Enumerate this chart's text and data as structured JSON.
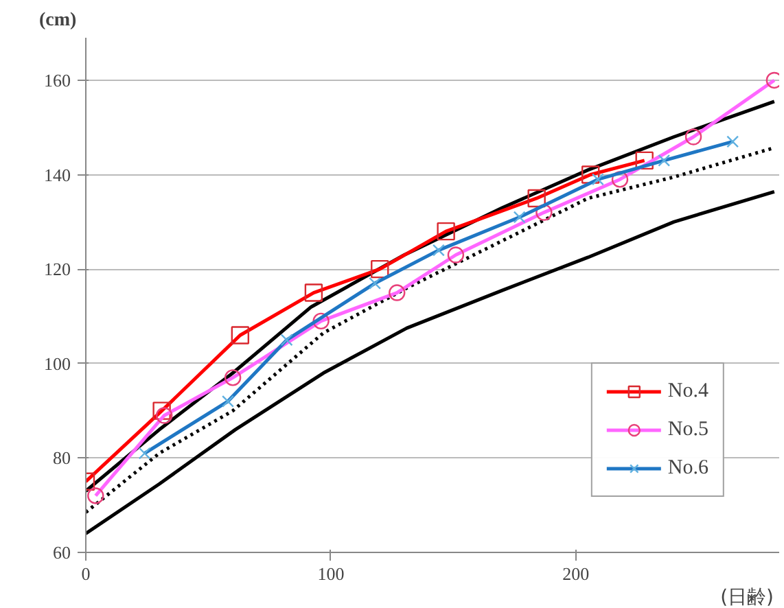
{
  "chart_data": {
    "type": "line",
    "ylabel": "(cm)",
    "xlabel": "(日齢)",
    "xlim": [
      0,
      283
    ],
    "ylim": [
      60,
      169
    ],
    "xticks": [
      0,
      100,
      200
    ],
    "yticks": [
      60,
      80,
      100,
      120,
      140,
      160
    ],
    "grid": "y",
    "legend": "right",
    "line_style": "solid",
    "series": [
      {
        "color": "#000000",
        "marker": "none",
        "x": [
          0,
          30,
          60,
          92,
          130,
          170,
          205,
          240,
          281
        ],
        "values": [
          73,
          86,
          98,
          112,
          123,
          133,
          141,
          148,
          155.5
        ]
      },
      {
        "color": "#000000",
        "marker": "none",
        "line_style": "dotted",
        "x": [
          0,
          30,
          60,
          97,
          131,
          170,
          205,
          240,
          281
        ],
        "values": [
          68.5,
          81,
          90,
          106.5,
          116,
          126,
          135,
          139.5,
          145.7
        ]
      },
      {
        "color": "#000000",
        "marker": "none",
        "x": [
          0,
          30,
          61,
          97,
          131,
          170,
          205,
          240,
          281
        ],
        "values": [
          64,
          74.5,
          86,
          98,
          107.5,
          115.5,
          122.5,
          130,
          136.4
        ]
      },
      {
        "name": "No.4",
        "color": "#ff0000",
        "marker": "square",
        "x": [
          0,
          31,
          63,
          93,
          120,
          147,
          184,
          206,
          228
        ],
        "values": [
          75,
          90,
          106,
          115,
          120,
          128,
          135,
          140,
          143
        ]
      },
      {
        "name": "No.5",
        "color": "#ff66ff",
        "marker": "circle",
        "x": [
          4,
          32,
          60,
          96,
          127,
          151,
          187,
          218,
          248,
          281
        ],
        "values": [
          72,
          89,
          97,
          109,
          115,
          123,
          132,
          139,
          148,
          160
        ]
      },
      {
        "name": "No.6",
        "color": "#1f77c4",
        "marker": "cross",
        "x": [
          24,
          58,
          82,
          118,
          144,
          177,
          209,
          236,
          264
        ],
        "values": [
          81,
          92,
          105,
          117,
          124,
          131,
          139,
          143,
          147
        ]
      }
    ]
  }
}
